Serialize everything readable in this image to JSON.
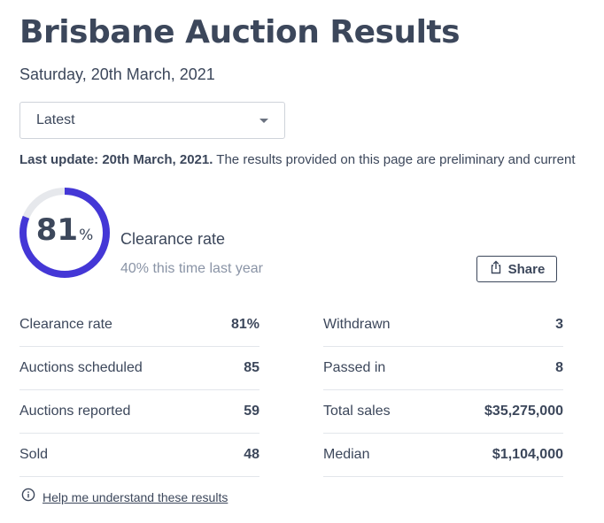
{
  "header": {
    "title": "Brisbane Auction Results",
    "date": "Saturday, 20th March, 2021"
  },
  "filter": {
    "selected": "Latest"
  },
  "update": {
    "bold": "Last update: 20th March, 2021.",
    "text": " The results provided on this page are preliminary and current"
  },
  "clearance": {
    "value": "81",
    "percent_sign": "%",
    "fraction": 0.81,
    "label": "Clearance rate",
    "last_year": "40% this time last year",
    "ring_color": "#4437d6",
    "track_color": "#e6e8ec"
  },
  "share": {
    "label": "Share",
    "icon": "share-icon"
  },
  "stats_left": [
    {
      "label": "Clearance rate",
      "value": "81%"
    },
    {
      "label": "Auctions scheduled",
      "value": "85"
    },
    {
      "label": "Auctions reported",
      "value": "59"
    },
    {
      "label": "Sold",
      "value": "48"
    }
  ],
  "stats_right": [
    {
      "label": "Withdrawn",
      "value": "3"
    },
    {
      "label": "Passed in",
      "value": "8"
    },
    {
      "label": "Total sales",
      "value": "$35,275,000"
    },
    {
      "label": "Median",
      "value": "$1,104,000"
    }
  ],
  "help": {
    "label": "Help me understand these results",
    "icon": "info-icon"
  }
}
